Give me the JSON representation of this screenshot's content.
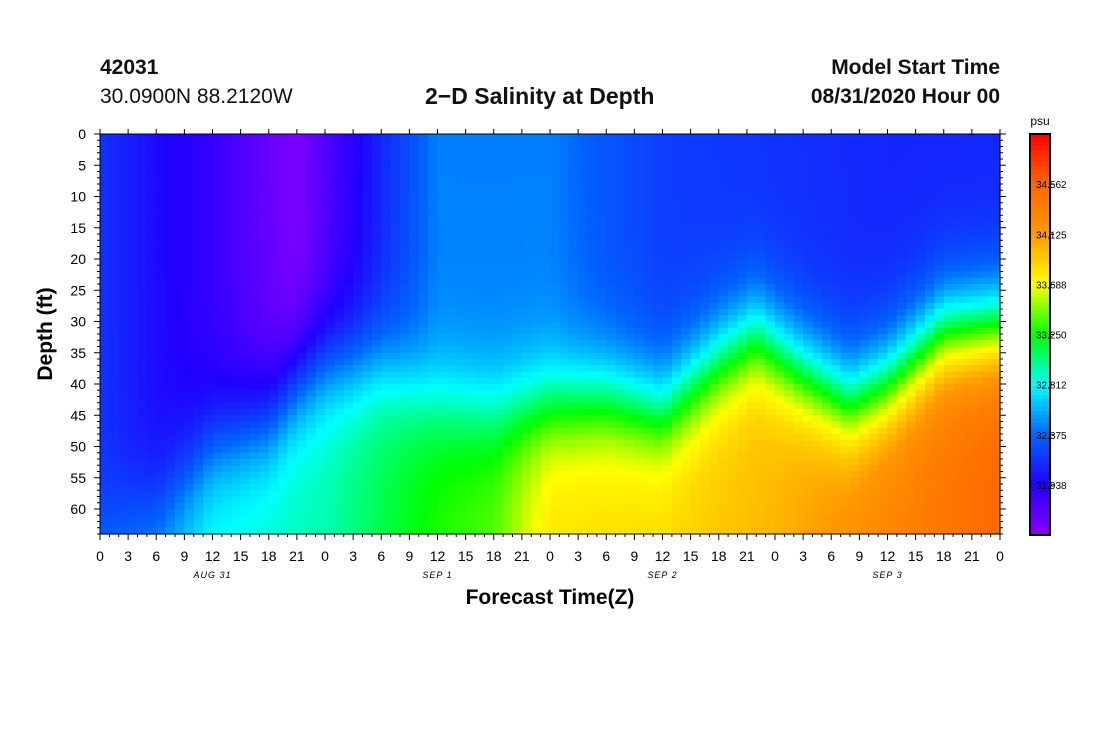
{
  "header": {
    "station_id": "42031",
    "station_coords": "30.0900N 88.2120W",
    "title": "2−D Salinity at Depth",
    "model_start_label": "Model Start Time",
    "model_start_value": "08/31/2020 Hour 00"
  },
  "chart_data": {
    "type": "heatmap",
    "title": "2−D Salinity at Depth",
    "xlabel": "Forecast Time(Z)",
    "ylabel": "Depth (ft)",
    "x_ticks": [
      "0",
      "3",
      "6",
      "9",
      "12",
      "15",
      "18",
      "21",
      "0",
      "3",
      "6",
      "9",
      "12",
      "15",
      "18",
      "21",
      "0",
      "3",
      "6",
      "9",
      "12",
      "15",
      "18",
      "21",
      "0",
      "3",
      "6",
      "9",
      "12",
      "15",
      "18",
      "21",
      "0"
    ],
    "x_day_labels": [
      "AUG 31",
      "SEP 1",
      "SEP 2",
      "SEP 3"
    ],
    "y_ticks": [
      0,
      5,
      10,
      15,
      20,
      25,
      30,
      35,
      40,
      45,
      50,
      55,
      60
    ],
    "ylim": [
      0,
      64
    ],
    "xlim_hours": [
      0,
      96
    ],
    "colorbar": {
      "unit": "psu",
      "ticks": [
        31.938,
        32.375,
        32.812,
        33.25,
        33.688,
        34.125,
        34.562
      ],
      "range": [
        31.5,
        35.0
      ],
      "colors": [
        "#8a00ff",
        "#2000ff",
        "#0066ff",
        "#00ffff",
        "#00ff00",
        "#ffff00",
        "#ff9900",
        "#ff6600",
        "#ff0000"
      ]
    },
    "halocline_depth_ft": [
      {
        "hour": 0,
        "depth": 64
      },
      {
        "hour": 6,
        "depth": 60
      },
      {
        "hour": 12,
        "depth": 50
      },
      {
        "hour": 18,
        "depth": 46
      },
      {
        "hour": 21,
        "depth": 40
      },
      {
        "hour": 24,
        "depth": 37
      },
      {
        "hour": 30,
        "depth": 37
      },
      {
        "hour": 36,
        "depth": 42
      },
      {
        "hour": 42,
        "depth": 44
      },
      {
        "hour": 48,
        "depth": 43
      },
      {
        "hour": 54,
        "depth": 42
      },
      {
        "hour": 60,
        "depth": 44
      },
      {
        "hour": 66,
        "depth": 36
      },
      {
        "hour": 70,
        "depth": 32
      },
      {
        "hour": 75,
        "depth": 38
      },
      {
        "hour": 80,
        "depth": 43
      },
      {
        "hour": 84,
        "depth": 40
      },
      {
        "hour": 90,
        "depth": 32
      },
      {
        "hour": 96,
        "depth": 31
      }
    ],
    "surface_salinity_psu": [
      {
        "hour": 0,
        "value": 32.15
      },
      {
        "hour": 6,
        "value": 31.98
      },
      {
        "hour": 12,
        "value": 31.85
      },
      {
        "hour": 21,
        "value": 31.55
      },
      {
        "hour": 27,
        "value": 31.9
      },
      {
        "hour": 30,
        "value": 32.1
      },
      {
        "hour": 36,
        "value": 32.45
      },
      {
        "hour": 48,
        "value": 32.45
      },
      {
        "hour": 54,
        "value": 32.3
      },
      {
        "hour": 60,
        "value": 32.2
      },
      {
        "hour": 72,
        "value": 32.15
      },
      {
        "hour": 84,
        "value": 32.1
      },
      {
        "hour": 96,
        "value": 32.1
      }
    ],
    "bottom_salinity_psu": [
      {
        "hour": 0,
        "value": 32.5
      },
      {
        "hour": 6,
        "value": 32.6
      },
      {
        "hour": 12,
        "value": 32.85
      },
      {
        "hour": 24,
        "value": 32.95
      },
      {
        "hour": 36,
        "value": 33.3
      },
      {
        "hour": 42,
        "value": 33.4
      },
      {
        "hour": 48,
        "value": 33.8
      },
      {
        "hour": 60,
        "value": 33.85
      },
      {
        "hour": 72,
        "value": 34.0
      },
      {
        "hour": 84,
        "value": 34.3
      },
      {
        "hour": 96,
        "value": 34.55
      }
    ]
  }
}
